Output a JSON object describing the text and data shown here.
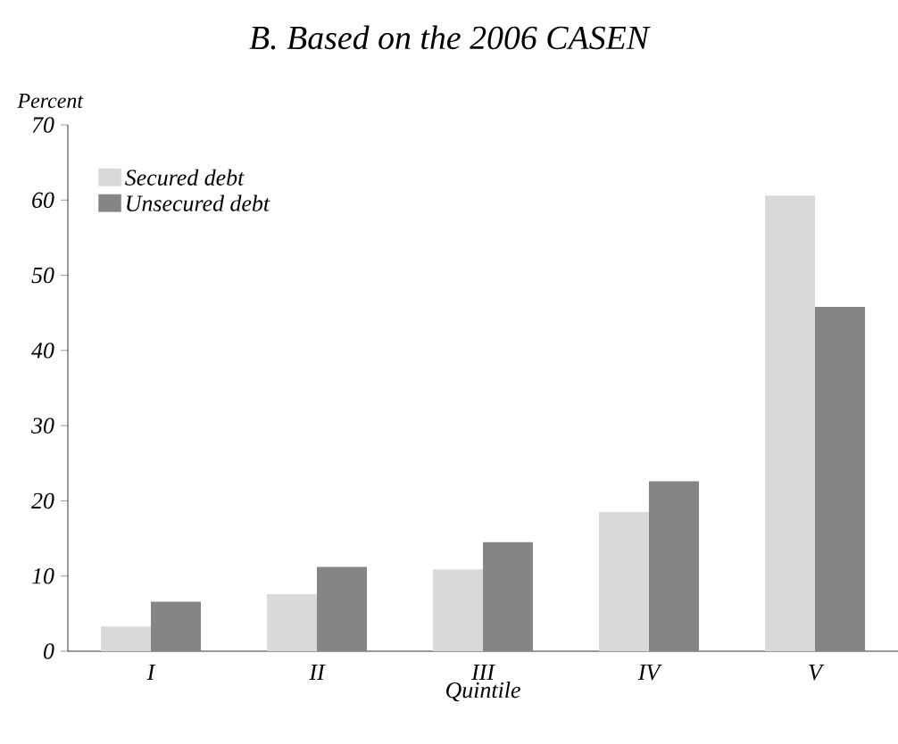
{
  "chart_data": {
    "type": "bar",
    "title": "B. Based on the 2006 CASEN",
    "ylabel": "Percent",
    "xlabel": "Quintile",
    "categories": [
      "I",
      "II",
      "III",
      "IV",
      "V"
    ],
    "series": [
      {
        "name": "Secured debt",
        "color": "#d9d9d9",
        "values": [
          3.3,
          7.6,
          10.9,
          18.5,
          60.6
        ]
      },
      {
        "name": "Unsecured debt",
        "color": "#858585",
        "values": [
          6.6,
          11.2,
          14.5,
          22.6,
          45.8
        ]
      }
    ],
    "ylim": [
      0,
      70
    ],
    "yticks": [
      0,
      10,
      20,
      30,
      40,
      50,
      60,
      70
    ],
    "legend": "top left"
  }
}
